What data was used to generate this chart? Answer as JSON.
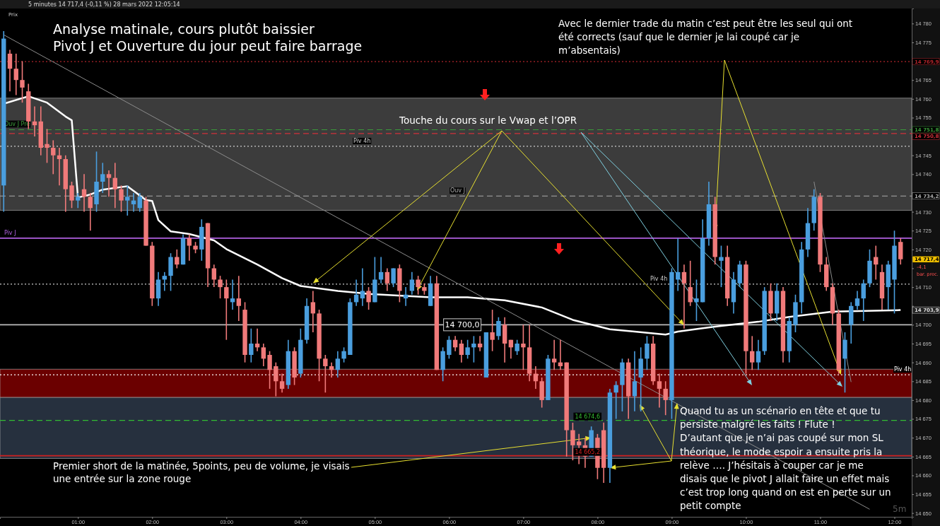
{
  "chart_data": {
    "type": "candlestick",
    "title": "5 minutes 14 717,4 (-0,11 %) 28 mars 2022 12:05:14",
    "x": [
      "2022-03-28T00:00",
      "2022-03-28T00:05",
      "2022-03-28T00:10",
      "2022-03-28T00:15",
      "2022-03-28T00:20",
      "2022-03-28T00:25",
      "2022-03-28T00:30",
      "2022-03-28T00:35",
      "2022-03-28T00:40",
      "2022-03-28T00:45",
      "2022-03-28T00:50",
      "2022-03-28T00:55",
      "2022-03-28T01:00",
      "2022-03-28T01:05",
      "2022-03-28T01:10",
      "2022-03-28T01:15",
      "2022-03-28T01:20",
      "2022-03-28T01:25",
      "2022-03-28T01:30",
      "2022-03-28T01:35",
      "2022-03-28T01:40",
      "2022-03-28T01:45",
      "2022-03-28T01:50",
      "2022-03-28T01:55",
      "2022-03-28T02:00",
      "2022-03-28T02:05",
      "2022-03-28T02:10",
      "2022-03-28T02:15",
      "2022-03-28T02:20",
      "2022-03-28T02:25",
      "2022-03-28T02:30",
      "2022-03-28T02:35",
      "2022-03-28T02:40",
      "2022-03-28T02:45",
      "2022-03-28T02:50",
      "2022-03-28T02:55",
      "2022-03-28T03:00",
      "2022-03-28T03:05",
      "2022-03-28T03:10",
      "2022-03-28T03:15",
      "2022-03-28T03:20",
      "2022-03-28T03:25",
      "2022-03-28T03:30",
      "2022-03-28T03:35",
      "2022-03-28T03:40",
      "2022-03-28T03:45",
      "2022-03-28T03:50",
      "2022-03-28T03:55",
      "2022-03-28T04:00",
      "2022-03-28T04:05",
      "2022-03-28T04:10",
      "2022-03-28T04:15",
      "2022-03-28T04:20",
      "2022-03-28T04:25",
      "2022-03-28T04:30",
      "2022-03-28T04:35",
      "2022-03-28T04:40",
      "2022-03-28T04:45",
      "2022-03-28T04:50",
      "2022-03-28T04:55",
      "2022-03-28T05:00",
      "2022-03-28T05:05",
      "2022-03-28T05:10",
      "2022-03-28T05:15",
      "2022-03-28T05:20",
      "2022-03-28T05:25",
      "2022-03-28T05:30",
      "2022-03-28T05:35",
      "2022-03-28T05:40",
      "2022-03-28T05:45",
      "2022-03-28T05:50",
      "2022-03-28T05:55",
      "2022-03-28T06:00",
      "2022-03-28T06:05",
      "2022-03-28T06:10",
      "2022-03-28T06:15",
      "2022-03-28T06:20",
      "2022-03-28T06:25",
      "2022-03-28T06:30",
      "2022-03-28T06:35",
      "2022-03-28T06:40",
      "2022-03-28T06:45",
      "2022-03-28T06:50",
      "2022-03-28T06:55",
      "2022-03-28T07:00",
      "2022-03-28T07:05",
      "2022-03-28T07:10",
      "2022-03-28T07:15",
      "2022-03-28T07:20",
      "2022-03-28T07:25",
      "2022-03-28T07:30",
      "2022-03-28T07:35",
      "2022-03-28T07:40",
      "2022-03-28T07:45",
      "2022-03-28T07:50",
      "2022-03-28T07:55",
      "2022-03-28T08:00",
      "2022-03-28T08:05",
      "2022-03-28T08:10",
      "2022-03-28T08:15",
      "2022-03-28T08:20",
      "2022-03-28T08:25",
      "2022-03-28T08:30",
      "2022-03-28T08:35",
      "2022-03-28T08:40",
      "2022-03-28T08:45",
      "2022-03-28T08:50",
      "2022-03-28T08:55",
      "2022-03-28T09:00",
      "2022-03-28T09:05",
      "2022-03-28T09:10",
      "2022-03-28T09:15",
      "2022-03-28T09:20",
      "2022-03-28T09:25",
      "2022-03-28T09:30",
      "2022-03-28T09:35",
      "2022-03-28T09:40",
      "2022-03-28T09:45",
      "2022-03-28T09:50",
      "2022-03-28T09:55",
      "2022-03-28T10:00",
      "2022-03-28T10:05",
      "2022-03-28T10:10",
      "2022-03-28T10:15",
      "2022-03-28T10:20",
      "2022-03-28T10:25",
      "2022-03-28T10:30",
      "2022-03-28T10:35",
      "2022-03-28T10:40",
      "2022-03-28T10:45",
      "2022-03-28T10:50",
      "2022-03-28T10:55",
      "2022-03-28T11:00",
      "2022-03-28T11:05",
      "2022-03-28T11:10",
      "2022-03-28T11:15",
      "2022-03-28T11:20",
      "2022-03-28T11:25",
      "2022-03-28T11:30",
      "2022-03-28T11:35",
      "2022-03-28T11:40",
      "2022-03-28T11:45",
      "2022-03-28T11:50",
      "2022-03-28T11:55",
      "2022-03-28T12:00",
      "2022-03-28T12:05"
    ],
    "ohlc": [
      [
        14737,
        14778,
        14730,
        14776
      ],
      [
        14772,
        14773,
        14762,
        14768
      ],
      [
        14768,
        14772,
        14761,
        14765
      ],
      [
        14765,
        14770,
        14759,
        14763
      ],
      [
        14762,
        14764,
        14752,
        14754
      ],
      [
        14754,
        14758,
        14750,
        14753
      ],
      [
        14754,
        14758,
        14745,
        14747
      ],
      [
        14748,
        14752,
        14743,
        14747
      ],
      [
        14747,
        14749,
        14740,
        14745
      ],
      [
        14745,
        14747,
        14737,
        14744
      ],
      [
        14744,
        14745,
        14730,
        14736
      ],
      [
        14737,
        14738,
        14731,
        14733
      ],
      [
        14733,
        14735,
        14731,
        14734
      ],
      [
        14736,
        14740,
        14730,
        14734
      ],
      [
        14734,
        14735,
        14725,
        14731
      ],
      [
        14732,
        14746,
        14730,
        14738
      ],
      [
        14738,
        14743,
        14735,
        14740
      ],
      [
        14740,
        14741,
        14734,
        14739
      ],
      [
        14739,
        14743,
        14731,
        14736
      ],
      [
        14736,
        14737,
        14730,
        14733
      ],
      [
        14733,
        14737,
        14729,
        14734
      ],
      [
        14732,
        14735,
        14730,
        14733
      ],
      [
        14731,
        14735,
        14730,
        14734
      ],
      [
        14733,
        14734,
        14721,
        14721
      ],
      [
        14721,
        14722,
        14705,
        14707
      ],
      [
        14707,
        14714,
        14705,
        14712
      ],
      [
        14712,
        14714,
        14709,
        14713
      ],
      [
        14713,
        14719,
        14709,
        14718
      ],
      [
        14718,
        14720,
        14715,
        14716
      ],
      [
        14716,
        14724,
        14716,
        14723
      ],
      [
        14723,
        14724,
        14717,
        14721
      ],
      [
        14721,
        14722,
        14719,
        14720
      ],
      [
        14720,
        14728,
        14717,
        14726
      ],
      [
        14727,
        14727,
        14710,
        14715
      ],
      [
        14715,
        14716,
        14710,
        14712
      ],
      [
        14712,
        14713,
        14707,
        14710
      ],
      [
        14710,
        14712,
        14696,
        14707
      ],
      [
        14706,
        14712,
        14704,
        14707
      ],
      [
        14707,
        14713,
        14701,
        14705
      ],
      [
        14704,
        14706,
        14690,
        14692
      ],
      [
        14692,
        14699,
        14690,
        14695
      ],
      [
        14695,
        14699,
        14693,
        14694
      ],
      [
        14694,
        14695,
        14689,
        14691
      ],
      [
        14692,
        14693,
        14683,
        14688
      ],
      [
        14689,
        14690,
        14681,
        14685
      ],
      [
        14685,
        14687,
        14682,
        14683
      ],
      [
        14684,
        14696,
        14683,
        14693
      ],
      [
        14693,
        14694,
        14684,
        14686
      ],
      [
        14687,
        14699,
        14686,
        14696
      ],
      [
        14696,
        14707,
        14695,
        14705
      ],
      [
        14706,
        14709,
        14698,
        14703
      ],
      [
        14703,
        14704,
        14685,
        14691
      ],
      [
        14691,
        14692,
        14682,
        14689
      ],
      [
        14689,
        14690,
        14686,
        14688
      ],
      [
        14688,
        14693,
        14686,
        14691
      ],
      [
        14691,
        14694,
        14690,
        14693
      ],
      [
        14692,
        14707,
        14692,
        14706
      ],
      [
        14706,
        14712,
        14705,
        14708
      ],
      [
        14707,
        14715,
        14705,
        14709
      ],
      [
        14709,
        14710,
        14704,
        14706
      ],
      [
        14706,
        14718,
        14706,
        14712
      ],
      [
        14712,
        14718,
        14711,
        14714
      ],
      [
        14714,
        14715,
        14709,
        14711
      ],
      [
        14711,
        14715,
        14710,
        14715
      ],
      [
        14715,
        14716,
        14706,
        14709
      ],
      [
        14707,
        14710,
        14705,
        14708
      ],
      [
        14709,
        14714,
        14708,
        14712
      ],
      [
        14712,
        14713,
        14708,
        14710
      ],
      [
        14710,
        14711,
        14708,
        14709
      ],
      [
        14705,
        14713,
        14705,
        14711
      ],
      [
        14711,
        14713,
        14688,
        14688
      ],
      [
        14688,
        14694,
        14685,
        14693
      ],
      [
        14692,
        14697,
        14691,
        14696
      ],
      [
        14696,
        14697,
        14693,
        14694
      ],
      [
        14695,
        14696,
        14690,
        14692
      ],
      [
        14692,
        14696,
        14691,
        14694
      ],
      [
        14694,
        14697,
        14690,
        14695
      ],
      [
        14695,
        14697,
        14693,
        14694
      ],
      [
        14686,
        14698,
        14686,
        14698
      ],
      [
        14698,
        14704,
        14693,
        14696
      ],
      [
        14697,
        14702,
        14696,
        14701
      ],
      [
        14700,
        14702,
        14690,
        14695
      ],
      [
        14696,
        14696,
        14691,
        14694
      ],
      [
        14693,
        14696,
        14692,
        14695
      ],
      [
        14695,
        14700,
        14688,
        14694
      ],
      [
        14694,
        14700,
        14685,
        14687
      ],
      [
        14687,
        14689,
        14683,
        14685
      ],
      [
        14685,
        14686,
        14678,
        14680
      ],
      [
        14680,
        14692,
        14680,
        14691
      ],
      [
        14691,
        14696,
        14688,
        14690
      ],
      [
        14690,
        14696,
        14688,
        14689
      ],
      [
        14690,
        14690,
        14665,
        14672
      ],
      [
        14672,
        14674,
        14664,
        14668
      ],
      [
        14669,
        14671,
        14663,
        14668
      ],
      [
        14668,
        14670,
        14662,
        14665
      ],
      [
        14665,
        14673,
        14665,
        14672
      ],
      [
        14670,
        14671,
        14659,
        14662
      ],
      [
        14672,
        14674,
        14658,
        14662
      ],
      [
        14662,
        14683,
        14658,
        14682
      ],
      [
        14682,
        14685,
        14675,
        14684
      ],
      [
        14684,
        14691,
        14677,
        14690
      ],
      [
        14690,
        14691,
        14675,
        14681
      ],
      [
        14681,
        14693,
        14677,
        14685
      ],
      [
        14686,
        14694,
        14677,
        14691
      ],
      [
        14691,
        14697,
        14688,
        14695
      ],
      [
        14695,
        14697,
        14684,
        14685
      ],
      [
        14685,
        14687,
        14678,
        14683
      ],
      [
        14683,
        14685,
        14676,
        14680
      ],
      [
        14680,
        14715,
        14675,
        14714
      ],
      [
        14712,
        14723,
        14709,
        14714
      ],
      [
        14714,
        14716,
        14699,
        14711
      ],
      [
        14710,
        14717,
        14705,
        14706
      ],
      [
        14706,
        14712,
        14701,
        14707
      ],
      [
        14706,
        14728,
        14706,
        14723
      ],
      [
        14723,
        14738,
        14721,
        14732
      ],
      [
        14732,
        14734,
        14716,
        14718
      ],
      [
        14717,
        14721,
        14710,
        14718
      ],
      [
        14718,
        14721,
        14705,
        14707
      ],
      [
        14706,
        14714,
        14703,
        14712
      ],
      [
        14711,
        14717,
        14710,
        14716
      ],
      [
        14716,
        14717,
        14687,
        14693
      ],
      [
        14693,
        14697,
        14688,
        14690
      ],
      [
        14690,
        14696,
        14688,
        14693
      ],
      [
        14693,
        14710,
        14692,
        14709
      ],
      [
        14709,
        14711,
        14701,
        14703
      ],
      [
        14703,
        14711,
        14701,
        14709
      ],
      [
        14709,
        14710,
        14690,
        14693
      ],
      [
        14693,
        14702,
        14690,
        14701
      ],
      [
        14700,
        14708,
        14698,
        14706
      ],
      [
        14706,
        14722,
        14703,
        14720
      ],
      [
        14720,
        14731,
        14718,
        14727
      ],
      [
        14727,
        14736,
        14725,
        14734
      ],
      [
        14734,
        14735,
        14714,
        14716
      ],
      [
        14716,
        14718,
        14709,
        14710
      ],
      [
        14710,
        14711,
        14700,
        14703
      ],
      [
        14703,
        14704,
        14687,
        14688
      ],
      [
        14691,
        14698,
        14682,
        14696
      ],
      [
        14700,
        14706,
        14695,
        14705
      ],
      [
        14705,
        14709,
        14704,
        14707
      ],
      [
        14707,
        14712,
        14701,
        14711
      ],
      [
        14711,
        14720,
        14710,
        14717
      ],
      [
        14718,
        14721,
        14712,
        14716
      ],
      [
        14714,
        14716,
        14704,
        14707
      ],
      [
        14710,
        14717,
        14704,
        14716
      ],
      [
        14712,
        14725,
        14703,
        14721
      ],
      [
        14722,
        14723,
        14716,
        14717.4
      ]
    ],
    "series": [
      {
        "type": "line",
        "color": "#ffffff",
        "x": [
          "2022-03-28T00:00",
          "2022-03-28T00:20",
          "2022-03-28T00:35",
          "2022-03-28T00:50",
          "2022-03-28T00:55",
          "2022-03-28T01:00",
          "2022-03-28T01:10",
          "2022-03-28T01:20",
          "2022-03-28T01:40",
          "2022-03-28T01:55",
          "2022-03-28T02:00",
          "2022-03-28T02:05",
          "2022-03-28T02:15",
          "2022-03-28T02:30",
          "2022-03-28T02:50",
          "2022-03-28T03:00",
          "2022-03-28T03:25",
          "2022-03-28T03:45",
          "2022-03-28T04:00",
          "2022-03-28T04:30",
          "2022-03-28T04:55",
          "2022-03-28T05:45",
          "2022-03-28T06:15",
          "2022-03-28T06:45",
          "2022-03-28T07:15",
          "2022-03-28T07:40",
          "2022-03-28T08:10",
          "2022-03-28T08:30",
          "2022-03-28T08:55",
          "2022-03-28T09:05",
          "2022-03-28T09:25",
          "2022-03-28T09:45",
          "2022-03-28T10:10",
          "2022-03-28T10:35",
          "2022-03-28T11:10",
          "2022-03-28T12:05"
        ],
        "values": [
          14758.7,
          14760.7,
          14759,
          14755.3,
          14754.3,
          14733.8,
          14734.6,
          14735.9,
          14736.8,
          14733.1,
          14732.9,
          14727.8,
          14724.8,
          14724.1,
          14722.4,
          14720.1,
          14716,
          14712.4,
          14710.3,
          14709,
          14708.2,
          14707.3,
          14707.3,
          14706.5,
          14704.6,
          14701.3,
          14698.8,
          14698.2,
          14697.4,
          14698.2,
          14699.1,
          14699.9,
          14700.8,
          14702.1,
          14703.5,
          14703.9
        ]
      },
      {
        "type": "line",
        "color": "#8c8c8c",
        "x": [
          "2022-03-28T00:00",
          "2022-03-28T11:40"
        ],
        "values": [
          14777,
          14651
        ]
      },
      {
        "type": "line",
        "color": "#8c8c8c",
        "x": [
          "2022-03-28T10:55",
          "2022-03-28T11:25"
        ],
        "values": [
          14738,
          14684.8
        ]
      }
    ],
    "xlim": [
      "2022-03-27T23:57",
      "2022-03-28T12:14"
    ],
    "xticks": [
      {
        "value": "2022-03-28T01:00",
        "label": "01:00"
      },
      {
        "value": "2022-03-28T02:00",
        "label": "02:00"
      },
      {
        "value": "2022-03-28T03:00",
        "label": "03:00"
      },
      {
        "value": "2022-03-28T04:00",
        "label": "04:00"
      },
      {
        "value": "2022-03-28T05:00",
        "label": "05:00"
      },
      {
        "value": "2022-03-28T06:00",
        "label": "06:00"
      },
      {
        "value": "2022-03-28T07:00",
        "label": "07:00"
      },
      {
        "value": "2022-03-28T08:00",
        "label": "08:00"
      },
      {
        "value": "2022-03-28T09:00",
        "label": "09:00"
      },
      {
        "value": "2022-03-28T10:00",
        "label": "10:00"
      },
      {
        "value": "2022-03-28T11:00",
        "label": "11:00"
      },
      {
        "value": "2022-03-28T12:00",
        "label": "12:00"
      }
    ],
    "ylim": [
      14649,
      14784
    ],
    "yticks": [
      {
        "value": 14650,
        "label": "14 650"
      },
      {
        "value": 14655,
        "label": "14 655"
      },
      {
        "value": 14660,
        "label": "14 660"
      },
      {
        "value": 14665,
        "label": "14 665"
      },
      {
        "value": 14670,
        "label": "14 670"
      },
      {
        "value": 14675,
        "label": "14 675"
      },
      {
        "value": 14680,
        "label": "14 680"
      },
      {
        "value": 14685,
        "label": "14 685"
      },
      {
        "value": 14690,
        "label": "14 690"
      },
      {
        "value": 14695,
        "label": "14 695"
      },
      {
        "value": 14700,
        "label": "14 700"
      },
      {
        "value": 14705,
        "label": null
      },
      {
        "value": 14710,
        "label": "14 710"
      },
      {
        "value": 14715,
        "label": null
      },
      {
        "value": 14720,
        "label": "14 720"
      },
      {
        "value": 14725,
        "label": "14 725"
      },
      {
        "value": 14730,
        "label": "14 730"
      },
      {
        "value": 14735,
        "label": null
      },
      {
        "value": 14740,
        "label": "14 740"
      },
      {
        "value": 14745,
        "label": "14 745"
      },
      {
        "value": 14750,
        "label": null
      },
      {
        "value": 14755,
        "label": "14 755"
      },
      {
        "value": 14760,
        "label": "14 760"
      },
      {
        "value": 14765,
        "label": "14 765"
      },
      {
        "value": 14770,
        "label": null
      },
      {
        "value": 14775,
        "label": "14 775"
      },
      {
        "value": 14780,
        "label": "14 780"
      }
    ],
    "bands": [
      {
        "axis": "y",
        "from": 14730.4,
        "to": 14760.2,
        "color": "#3c3c3c"
      },
      {
        "axis": "y",
        "from": 14680.7,
        "to": 14688.2,
        "color": "#6b0000"
      },
      {
        "axis": "y",
        "from": 14664.5,
        "to": 14680.7,
        "color": "#26303e"
      }
    ],
    "ref_lines": [
      {
        "axis": "y",
        "value": 14769.9,
        "color": "#b0242a",
        "line_style": "dotted"
      },
      {
        "axis": "y",
        "value": 14751.8,
        "label": "Ouv J Pré",
        "color": "#3a9a3a",
        "line_style": "dashed"
      },
      {
        "axis": "y",
        "value": 14750.8,
        "color": "#d0303a",
        "line_style": "dashed"
      },
      {
        "axis": "y",
        "value": 14747.4,
        "label": "Piv 4h",
        "color": "#cccccc",
        "line_style": "dotted"
      },
      {
        "axis": "y",
        "value": 14734.2,
        "label": "Ouv J",
        "color": "#aaaaaa",
        "line_style": "dashed"
      },
      {
        "axis": "y",
        "value": 14723,
        "label": "Piv J",
        "color": "#b060e0"
      },
      {
        "axis": "y",
        "value": 14710.8,
        "label": "Piv 4h",
        "color": "#cccccc",
        "line_style": "dotted"
      },
      {
        "axis": "y",
        "value": 14700,
        "color": "#bbbbbb"
      },
      {
        "axis": "y",
        "value": 14686.7,
        "label": "Piv 4h",
        "color": "#ffffff",
        "line_style": "dotted"
      },
      {
        "axis": "y",
        "value": 14674.6,
        "color": "#33bb33",
        "line_style": "dashed"
      },
      {
        "axis": "y",
        "value": 14665.2,
        "color": "#d02020"
      }
    ],
    "annotations": [
      "Analyse matinale, cours plutôt baissier\nPivot J et Ouverture du jour peut faire barrage",
      {
        "text": "Avec le dernier trade du matin c’est peut être les seul qui ont\nété corrects (sauf que le dernier je lai coupé car je\nm’absentais)",
        "x": "2022-03-28T09:35",
        "y": 14725
      },
      {
        "text": "Touche du cours sur le Vwap et  l’OPR",
        "x": "2022-03-28T04:10",
        "y": 14711
      },
      {
        "text": "Premier short de la matinée, 5points, peu de volume, je visais\nune entrée sur la zone rouge",
        "x": "2022-03-28T07:55",
        "y": 14670
      },
      {
        "text": "Quand tu as un scénario en tête et que tu\npersiste malgré les faits ! Flute !\nD’autant que je n’ai pas coupé sur mon SL\nthéorique, le mode espoir a ensuite pris la\nrelève …. J’hésitais à couper car je me\ndisais que le pivot J allait faire un effet mais\nc’est trop long quand on est en perte sur un\npetit compte",
        "x": "2022-03-28T08:10",
        "y": 14662
      },
      "Prix",
      "-4,1",
      "bar. prec.",
      "5m",
      {
        "text": "14 769,9",
        "x": "2022-03-28T12:14",
        "y": 14769.9
      },
      {
        "text": "14 751,8",
        "x": "2022-03-28T12:14",
        "y": 14751.8
      },
      {
        "text": "14 750,8",
        "x": "2022-03-28T12:14",
        "y": 14750.8
      },
      {
        "text": "14 734,2",
        "x": "2022-03-28T12:14",
        "y": 14734.2
      },
      {
        "text": "14 717,4",
        "x": "2022-03-28T12:05",
        "y": 14717.4
      },
      {
        "text": "14 703,9",
        "x": "2022-03-28T12:05",
        "y": 14703.9
      },
      {
        "text": "14 700,0",
        "x": "2022-03-28T05:55",
        "y": 14700
      },
      {
        "text": "14 674,6",
        "x": "2022-03-28T07:40",
        "y": 14674.6
      },
      {
        "text": "14 665,2",
        "x": "2022-03-28T07:40",
        "y": 14665.2
      }
    ]
  }
}
